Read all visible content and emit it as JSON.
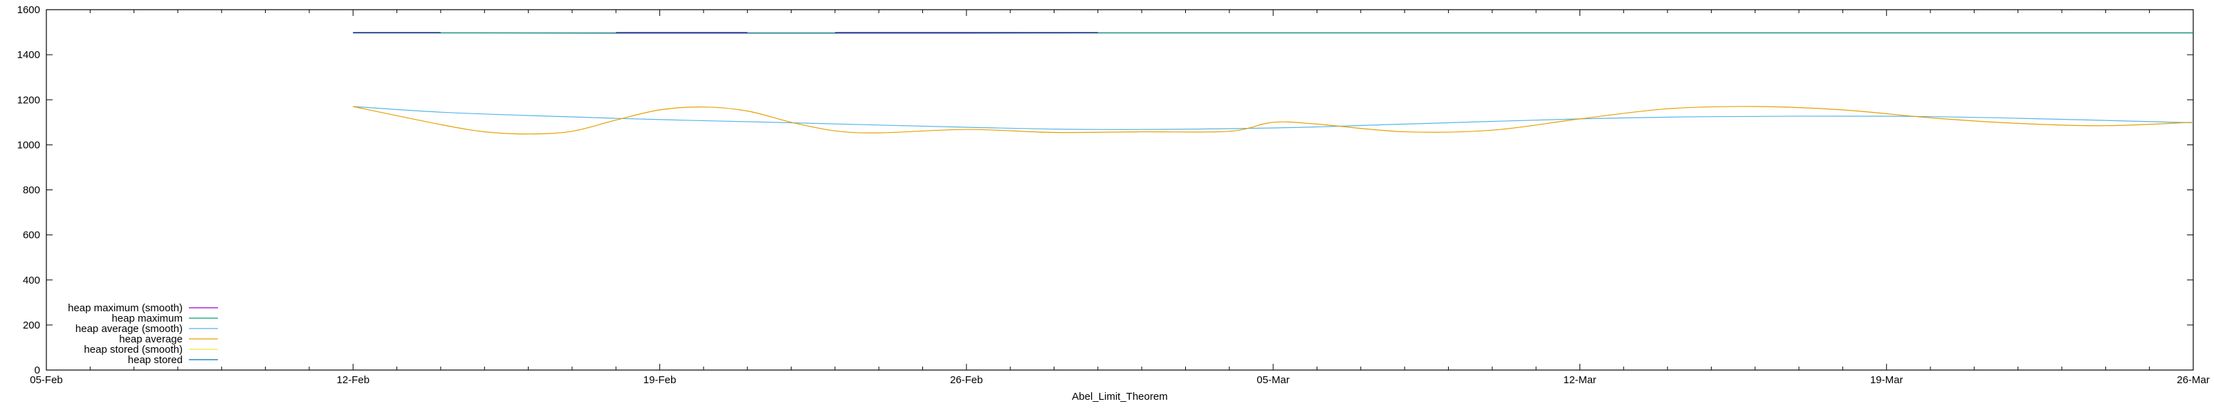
{
  "chart_data": {
    "type": "line",
    "xlabel": "Abel_Limit_Theorem",
    "ylabel": "",
    "grid": false,
    "legend_position": "bottom-left",
    "xlim": [
      "2019-02-05",
      "2019-03-26"
    ],
    "ylim": [
      0,
      1600
    ],
    "x_ticks": [
      "05-Feb",
      "12-Feb",
      "19-Feb",
      "26-Feb",
      "05-Mar",
      "12-Mar",
      "19-Mar",
      "26-Mar"
    ],
    "y_ticks": [
      "0",
      "200",
      "400",
      "600",
      "800",
      "1000",
      "1200",
      "1400",
      "1600"
    ],
    "series": [
      {
        "name": "heap maximum (smooth)",
        "color": "#9400d3",
        "points": [
          [
            "2019-02-12",
            1497
          ],
          [
            "2019-02-15",
            1497
          ],
          [
            "2019-02-18",
            1496
          ],
          [
            "2019-02-22",
            1496
          ],
          [
            "2019-02-26",
            1496
          ],
          [
            "2019-03-01",
            1497
          ],
          [
            "2019-03-05",
            1497
          ],
          [
            "2019-03-12",
            1497
          ],
          [
            "2019-03-19",
            1497
          ],
          [
            "2019-03-26",
            1497
          ]
        ]
      },
      {
        "name": "heap maximum",
        "color": "#009e73",
        "points": [
          [
            "2019-02-12",
            1497
          ],
          [
            "2019-02-19",
            1497
          ],
          [
            "2019-02-26",
            1497
          ],
          [
            "2019-03-05",
            1497
          ],
          [
            "2019-03-12",
            1497
          ],
          [
            "2019-03-19",
            1497
          ],
          [
            "2019-03-26",
            1497
          ]
        ]
      },
      {
        "name": "heap average (smooth)",
        "color": "#56b4e9",
        "points": [
          [
            "2019-02-12",
            1170
          ],
          [
            "2019-02-14",
            1145
          ],
          [
            "2019-02-16",
            1130
          ],
          [
            "2019-02-19",
            1112
          ],
          [
            "2019-02-22",
            1098
          ],
          [
            "2019-02-26",
            1078
          ],
          [
            "2019-03-01",
            1068
          ],
          [
            "2019-03-05",
            1075
          ],
          [
            "2019-03-08",
            1092
          ],
          [
            "2019-03-12",
            1115
          ],
          [
            "2019-03-15",
            1125
          ],
          [
            "2019-03-19",
            1127
          ],
          [
            "2019-03-22",
            1118
          ],
          [
            "2019-03-26",
            1098
          ]
        ]
      },
      {
        "name": "heap average",
        "color": "#e69f00",
        "points": [
          [
            "2019-02-12",
            1170
          ],
          [
            "2019-02-14",
            1090
          ],
          [
            "2019-02-15",
            1058
          ],
          [
            "2019-02-16",
            1048
          ],
          [
            "2019-02-17",
            1060
          ],
          [
            "2019-02-18",
            1110
          ],
          [
            "2019-02-19",
            1155
          ],
          [
            "2019-02-20",
            1168
          ],
          [
            "2019-02-21",
            1150
          ],
          [
            "2019-02-22",
            1100
          ],
          [
            "2019-02-23",
            1062
          ],
          [
            "2019-02-24",
            1053
          ],
          [
            "2019-02-26",
            1068
          ],
          [
            "2019-02-28",
            1055
          ],
          [
            "2019-03-02",
            1058
          ],
          [
            "2019-03-04",
            1060
          ],
          [
            "2019-03-05",
            1100
          ],
          [
            "2019-03-06",
            1092
          ],
          [
            "2019-03-08",
            1058
          ],
          [
            "2019-03-10",
            1065
          ],
          [
            "2019-03-12",
            1115
          ],
          [
            "2019-03-14",
            1160
          ],
          [
            "2019-03-16",
            1170
          ],
          [
            "2019-03-18",
            1155
          ],
          [
            "2019-03-20",
            1120
          ],
          [
            "2019-03-22",
            1095
          ],
          [
            "2019-03-24",
            1085
          ],
          [
            "2019-03-26",
            1100
          ]
        ]
      },
      {
        "name": "heap stored (smooth)",
        "color": "#f0e442",
        "points": []
      },
      {
        "name": "heap stored",
        "color": "#0072b2",
        "points": []
      }
    ],
    "segments_heap_maximum_raw": [
      {
        "color": "#000080",
        "from": "2019-02-12",
        "to": "2019-02-14",
        "y": 1497
      },
      {
        "color": "#000080",
        "from": "2019-02-18",
        "to": "2019-02-21",
        "y": 1497
      },
      {
        "color": "#000080",
        "from": "2019-02-23",
        "to": "2019-03-01",
        "y": 1497
      }
    ]
  }
}
